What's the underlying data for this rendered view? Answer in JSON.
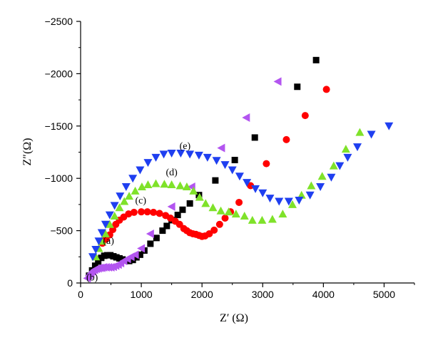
{
  "chart_data": {
    "type": "scatter",
    "title": "",
    "xlabel": "Z′ (Ω)",
    "ylabel": "Z″(Ω)",
    "xlim": [
      0,
      5500
    ],
    "ylim": [
      0,
      -2500
    ],
    "x_ticks": [
      {
        "value": 0,
        "label": "0"
      },
      {
        "value": 1000,
        "label": "1000"
      },
      {
        "value": 2000,
        "label": "2000"
      },
      {
        "value": 3000,
        "label": "3000"
      },
      {
        "value": 4000,
        "label": "4000"
      },
      {
        "value": 5000,
        "label": "5000"
      }
    ],
    "y_ticks": [
      {
        "value": 0,
        "label": "0"
      },
      {
        "value": -500,
        "label": "−500"
      },
      {
        "value": -1000,
        "label": "−1000"
      },
      {
        "value": -1500,
        "label": "−1500"
      },
      {
        "value": -2000,
        "label": "−2000"
      },
      {
        "value": -2500,
        "label": "−2500"
      }
    ],
    "grid": false,
    "legend": "none",
    "series": [
      {
        "tag": "(a)",
        "marker": "square",
        "color": "#000000",
        "tag_at": {
          "x": 460,
          "y": -375
        },
        "x": [
          140,
          190,
          240,
          290,
          340,
          390,
          440,
          490,
          540,
          590,
          640,
          690,
          740,
          800,
          860,
          920,
          980,
          1050,
          1150,
          1250,
          1350,
          1420,
          1500,
          1600,
          1680,
          1800,
          1950,
          2220,
          2540,
          2870,
          3570,
          3880
        ],
        "y": [
          -70,
          -120,
          -165,
          -205,
          -240,
          -260,
          -265,
          -265,
          -255,
          -245,
          -235,
          -225,
          -215,
          -210,
          -220,
          -245,
          -270,
          -310,
          -375,
          -430,
          -500,
          -545,
          -600,
          -650,
          -700,
          -760,
          -840,
          -980,
          -1175,
          -1390,
          -1875,
          -2130
        ]
      },
      {
        "tag": "(b)",
        "marker": "diamond",
        "color": "#b355f0",
        "tag_at": {
          "x": 190,
          "y": -25
        },
        "x": [
          110,
          140,
          170,
          200,
          230,
          260,
          290,
          320,
          350,
          380,
          420,
          460,
          500,
          540,
          580,
          620,
          660,
          710,
          770,
          830,
          900,
          1000,
          1150,
          1500,
          1830,
          2320,
          2730,
          3250
        ],
        "y": [
          -45,
          -70,
          -90,
          -110,
          -125,
          -135,
          -140,
          -145,
          -145,
          -150,
          -150,
          -150,
          -150,
          -155,
          -165,
          -175,
          -190,
          -210,
          -230,
          -250,
          -270,
          -330,
          -470,
          -730,
          -920,
          -1290,
          -1580,
          -1925
        ]
      },
      {
        "tag": "(c)",
        "marker": "circle",
        "color": "#ff0000",
        "tag_at": {
          "x": 990,
          "y": -760
        },
        "x": [
          360,
          420,
          480,
          530,
          580,
          640,
          710,
          790,
          880,
          1000,
          1100,
          1200,
          1300,
          1400,
          1480,
          1560,
          1630,
          1700,
          1750,
          1800,
          1850,
          1900,
          1950,
          2000,
          2050,
          2120,
          2200,
          2290,
          2380,
          2470,
          2610,
          2800,
          3060,
          3390,
          3700,
          4050
        ],
        "y": [
          -380,
          -420,
          -460,
          -510,
          -560,
          -600,
          -630,
          -660,
          -675,
          -680,
          -680,
          -675,
          -665,
          -645,
          -620,
          -590,
          -560,
          -520,
          -500,
          -480,
          -470,
          -465,
          -455,
          -445,
          -450,
          -470,
          -505,
          -560,
          -620,
          -680,
          -770,
          -930,
          -1140,
          -1370,
          -1600,
          -1850
        ],
        "y_note": ""
      },
      {
        "tag": "(d)",
        "marker": "triangle-up",
        "color": "#7fe22a",
        "tag_at": {
          "x": 1500,
          "y": -1030
        },
        "x": [
          250,
          300,
          350,
          410,
          480,
          560,
          640,
          720,
          800,
          900,
          1010,
          1110,
          1240,
          1380,
          1500,
          1640,
          1750,
          1860,
          1960,
          2060,
          2180,
          2310,
          2440,
          2560,
          2700,
          2830,
          2990,
          3160,
          3330,
          3490,
          3640,
          3800,
          3980,
          4170,
          4370,
          4600
        ],
        "y": [
          -250,
          -330,
          -400,
          -470,
          -560,
          -640,
          -720,
          -780,
          -830,
          -880,
          -920,
          -940,
          -950,
          -945,
          -940,
          -930,
          -920,
          -880,
          -820,
          -760,
          -720,
          -690,
          -680,
          -660,
          -640,
          -600,
          -600,
          -610,
          -660,
          -750,
          -840,
          -930,
          -1020,
          -1120,
          -1280,
          -1440
        ]
      },
      {
        "tag": "(e)",
        "marker": "triangle-down",
        "color": "#1f3ff0",
        "tag_at": {
          "x": 1720,
          "y": -1280
        },
        "x": [
          200,
          250,
          300,
          350,
          410,
          480,
          560,
          650,
          750,
          860,
          980,
          1110,
          1240,
          1370,
          1500,
          1650,
          1800,
          1950,
          2090,
          2240,
          2380,
          2500,
          2620,
          2740,
          2880,
          3000,
          3120,
          3270,
          3430,
          3600,
          3780,
          3950,
          4130,
          4270,
          4400,
          4560,
          4790,
          5080
        ],
        "y": [
          -250,
          -320,
          -400,
          -480,
          -560,
          -650,
          -740,
          -830,
          -920,
          -1000,
          -1080,
          -1150,
          -1200,
          -1230,
          -1240,
          -1240,
          -1230,
          -1220,
          -1200,
          -1170,
          -1130,
          -1080,
          -1020,
          -960,
          -900,
          -860,
          -810,
          -780,
          -780,
          -790,
          -840,
          -920,
          -1010,
          -1120,
          -1200,
          -1300,
          -1420,
          -1500
        ]
      }
    ]
  }
}
